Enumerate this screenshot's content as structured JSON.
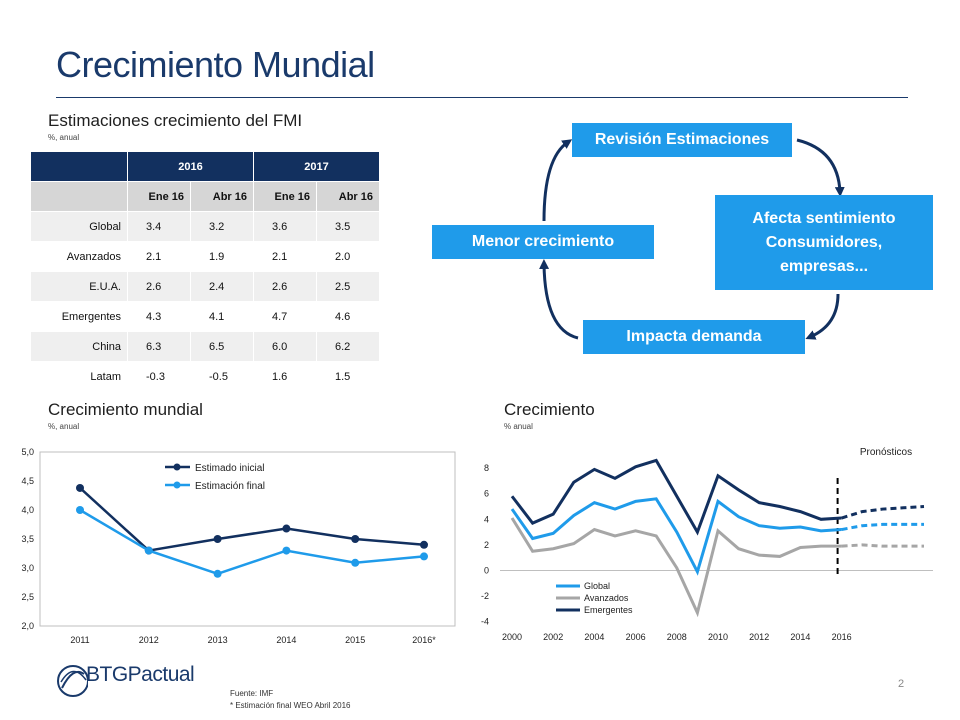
{
  "page": {
    "title": "Crecimiento Mundial",
    "page_number": "2",
    "footnote_source": "Fuente: IMF",
    "footnote_note": "* Estimación final WEO Abril 2016",
    "logo_text": "BTGPactual"
  },
  "imf_table": {
    "title": "Estimaciones crecimiento del FMI",
    "subtitle": "%, anual",
    "years": [
      "2016",
      "2017"
    ],
    "subheaders": [
      "Ene 16",
      "Abr 16",
      "Ene 16",
      "Abr 16"
    ],
    "rows": [
      {
        "label": "Global",
        "values": [
          "3.4",
          "3.2",
          "3.6",
          "3.5"
        ]
      },
      {
        "label": "Avanzados",
        "values": [
          "2.1",
          "1.9",
          "2.1",
          "2.0"
        ]
      },
      {
        "label": "E.U.A.",
        "values": [
          "2.6",
          "2.4",
          "2.6",
          "2.5"
        ]
      },
      {
        "label": "Emergentes",
        "values": [
          "4.3",
          "4.1",
          "4.7",
          "4.6"
        ]
      },
      {
        "label": "China",
        "values": [
          "6.3",
          "6.5",
          "6.0",
          "6.2"
        ]
      },
      {
        "label": "Latam",
        "values": [
          "-0.3",
          "-0.5",
          "1.6",
          "1.5"
        ]
      }
    ]
  },
  "diagram": {
    "revision": "Revisión Estimaciones",
    "afecta_line1": "Afecta sentimiento",
    "afecta_line2": "Consumidores,",
    "afecta_line3": "empresas...",
    "menor": "Menor crecimiento",
    "impacta": "Impacta demanda",
    "box_color": "#1f9bea",
    "arrow_color": "#12305f"
  },
  "chart_data": [
    {
      "type": "line",
      "title": "Crecimiento mundial",
      "subtitle": "%, anual",
      "categories": [
        "2011",
        "2012",
        "2013",
        "2014",
        "2015",
        "2016*"
      ],
      "series": [
        {
          "name": "Estimado inicial",
          "color": "#12305f",
          "values": [
            4.38,
            3.3,
            3.5,
            3.68,
            3.5,
            3.4
          ]
        },
        {
          "name": "Estimación final",
          "color": "#1f9bea",
          "values": [
            4.0,
            3.3,
            2.9,
            3.3,
            3.09,
            3.2
          ]
        }
      ],
      "ylim": [
        2.0,
        5.0
      ],
      "yticks": [
        "2,0",
        "2,5",
        "3,0",
        "3,5",
        "4,0",
        "4,5",
        "5,0"
      ],
      "legend": "top-center",
      "grid": false
    },
    {
      "type": "line",
      "title": "Crecimiento",
      "subtitle": "% anual",
      "x": [
        2000,
        2001,
        2002,
        2003,
        2004,
        2005,
        2006,
        2007,
        2008,
        2009,
        2010,
        2011,
        2012,
        2013,
        2014,
        2015,
        2016,
        2017,
        2018,
        2019,
        2020
      ],
      "xticks": [
        "2000",
        "2002",
        "2004",
        "2006",
        "2008",
        "2010",
        "2012",
        "2014",
        "2016"
      ],
      "yticks": [
        "-4",
        "-2",
        "0",
        "2",
        "4",
        "6",
        "8"
      ],
      "ylim": [
        -4,
        9
      ],
      "forecast_from": 2016,
      "annotation": "Pronósticos",
      "series": [
        {
          "name": "Global",
          "color": "#1f9bea",
          "values": [
            4.8,
            2.5,
            2.9,
            4.3,
            5.3,
            4.8,
            5.4,
            5.6,
            3.0,
            -0.1,
            5.4,
            4.2,
            3.5,
            3.3,
            3.4,
            3.1,
            3.2,
            3.5,
            3.6,
            3.6,
            3.6
          ]
        },
        {
          "name": "Avanzados",
          "color": "#a6a6a6",
          "values": [
            4.1,
            1.5,
            1.7,
            2.1,
            3.2,
            2.7,
            3.1,
            2.7,
            0.2,
            -3.3,
            3.1,
            1.7,
            1.2,
            1.1,
            1.8,
            1.9,
            1.9,
            2.0,
            1.9,
            1.9,
            1.9
          ]
        },
        {
          "name": "Emergentes",
          "color": "#12305f",
          "values": [
            5.8,
            3.7,
            4.4,
            6.9,
            7.9,
            7.2,
            8.1,
            8.6,
            5.8,
            3.0,
            7.4,
            6.3,
            5.3,
            5.0,
            4.6,
            4.0,
            4.1,
            4.6,
            4.8,
            4.9,
            5.0
          ]
        }
      ],
      "legend": "bottom-left",
      "grid": false
    }
  ]
}
